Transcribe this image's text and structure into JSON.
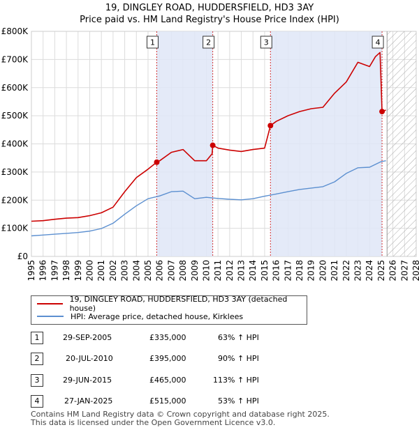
{
  "title": "19, DINGLEY ROAD, HUDDERSFIELD, HD3 3AY",
  "subtitle": "Price paid vs. HM Land Registry's House Price Index (HPI)",
  "colors": {
    "price": "#cc0000",
    "hpi": "#5b8fd0",
    "shade": "#dfe6f7",
    "marker": "#cc0000"
  },
  "legend": {
    "price_label": "19, DINGLEY ROAD, HUDDERSFIELD, HD3 3AY (detached house)",
    "hpi_label": "HPI: Average price, detached house, Kirklees"
  },
  "transactions": [
    {
      "num": "1",
      "date": "29-SEP-2005",
      "price": "£335,000",
      "hpi": "63% ↑ HPI"
    },
    {
      "num": "2",
      "date": "20-JUL-2010",
      "price": "£395,000",
      "hpi": "90% ↑ HPI"
    },
    {
      "num": "3",
      "date": "29-JUN-2015",
      "price": "£465,000",
      "hpi": "113% ↑ HPI"
    },
    {
      "num": "4",
      "date": "27-JAN-2025",
      "price": "£515,000",
      "hpi": "53% ↑ HPI"
    }
  ],
  "footer": {
    "line1": "Contains HM Land Registry data © Crown copyright and database right 2025.",
    "line2": "This data is licensed under the Open Government Licence v3.0."
  },
  "chart_data": {
    "type": "line",
    "xlim": [
      1995,
      2028
    ],
    "ylim": [
      0,
      800000
    ],
    "y_ticks": [
      0,
      100000,
      200000,
      300000,
      400000,
      500000,
      600000,
      700000,
      800000
    ],
    "y_tick_labels": [
      "£0",
      "£100K",
      "£200K",
      "£300K",
      "£400K",
      "£500K",
      "£600K",
      "£700K",
      "£800K"
    ],
    "x_ticks": [
      1995,
      1996,
      1997,
      1998,
      1999,
      2000,
      2001,
      2002,
      2003,
      2004,
      2005,
      2006,
      2007,
      2008,
      2009,
      2010,
      2011,
      2012,
      2013,
      2014,
      2015,
      2016,
      2017,
      2018,
      2019,
      2020,
      2021,
      2022,
      2023,
      2024,
      2025,
      2026,
      2027,
      2028
    ],
    "x_tick_labels": [
      "1995",
      "1996",
      "1997",
      "1998",
      "1999",
      "2000",
      "2001",
      "2002",
      "2003",
      "2004",
      "2005",
      "2006",
      "2007",
      "2008",
      "2009",
      "2010",
      "2011",
      "2012",
      "2013",
      "2014",
      "2015",
      "2016",
      "2017",
      "2018",
      "2019",
      "2020",
      "2021",
      "2022",
      "2023",
      "2024",
      "2025",
      "2026",
      "2027",
      "2028"
    ],
    "forecast_start": 2025.5,
    "shaded_periods": [
      [
        2005.75,
        2010.55
      ],
      [
        2015.5,
        2025.07
      ]
    ],
    "sales": [
      {
        "label": "1",
        "x": 2005.75,
        "y": 335000
      },
      {
        "label": "2",
        "x": 2010.55,
        "y": 395000
      },
      {
        "label": "3",
        "x": 2015.5,
        "y": 465000
      },
      {
        "label": "4",
        "x": 2025.07,
        "y": 515000
      }
    ],
    "series": [
      {
        "name": "19, DINGLEY ROAD, HUDDERSFIELD, HD3 3AY (detached house)",
        "x": [
          1995,
          1996,
          1997,
          1998,
          1999,
          2000,
          2001,
          2002,
          2003,
          2004,
          2005,
          2005.75,
          2006,
          2007,
          2008,
          2009,
          2010,
          2010.5,
          2010.55,
          2011,
          2012,
          2013,
          2014,
          2015,
          2015.5,
          2016,
          2017,
          2018,
          2019,
          2020,
          2021,
          2022,
          2023,
          2024,
          2024.5,
          2024.9,
          2025.07,
          2025.4
        ],
        "y": [
          125000,
          127000,
          132000,
          136000,
          138000,
          145000,
          155000,
          175000,
          230000,
          280000,
          310000,
          335000,
          340000,
          370000,
          380000,
          340000,
          340000,
          365000,
          395000,
          385000,
          378000,
          373000,
          380000,
          385000,
          465000,
          480000,
          500000,
          515000,
          525000,
          530000,
          580000,
          620000,
          690000,
          675000,
          710000,
          725000,
          515000,
          520000
        ]
      },
      {
        "name": "HPI: Average price, detached house, Kirklees",
        "x": [
          1995,
          1996,
          1997,
          1998,
          1999,
          2000,
          2001,
          2002,
          2003,
          2004,
          2005,
          2006,
          2007,
          2008,
          2009,
          2010,
          2011,
          2012,
          2013,
          2014,
          2015,
          2016,
          2017,
          2018,
          2019,
          2020,
          2021,
          2022,
          2023,
          2024,
          2025,
          2025.4
        ],
        "y": [
          73000,
          76000,
          79000,
          82000,
          85000,
          90000,
          99000,
          118000,
          150000,
          180000,
          205000,
          215000,
          230000,
          232000,
          205000,
          210000,
          206000,
          203000,
          201000,
          205000,
          214000,
          222000,
          230000,
          238000,
          243000,
          248000,
          265000,
          295000,
          315000,
          317000,
          337000,
          340000
        ]
      }
    ]
  }
}
